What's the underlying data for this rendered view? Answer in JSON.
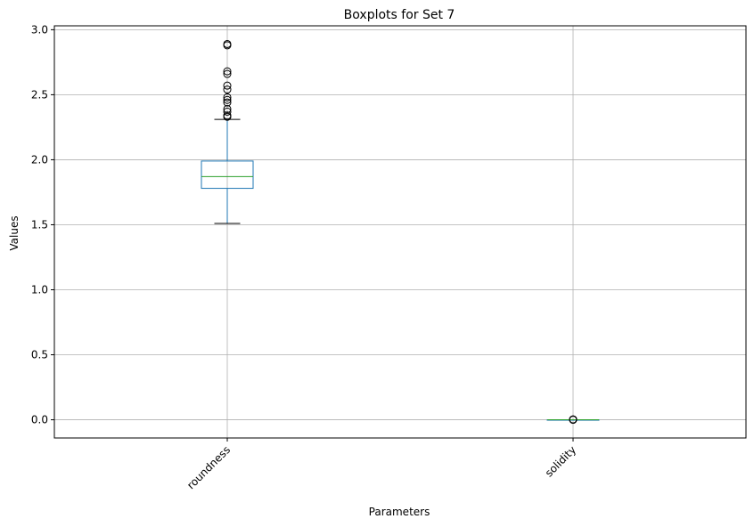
{
  "chart_data": {
    "type": "box",
    "title": "Boxplots for Set 7",
    "xlabel": "Parameters",
    "ylabel": "Values",
    "ylim": [
      -0.14,
      3.03
    ],
    "yticks": [
      0.0,
      0.5,
      1.0,
      1.5,
      2.0,
      2.5,
      3.0
    ],
    "ytick_labels": [
      "0.0",
      "0.5",
      "1.0",
      "1.5",
      "2.0",
      "2.5",
      "3.0"
    ],
    "grid": true,
    "xtick_rotation": 45,
    "categories": [
      "roundness",
      "solidity"
    ],
    "boxes": [
      {
        "name": "roundness",
        "whisker_low": 1.51,
        "q1": 1.78,
        "median": 1.87,
        "q3": 1.99,
        "whisker_high": 2.31,
        "outliers": [
          2.33,
          2.34,
          2.37,
          2.39,
          2.44,
          2.46,
          2.48,
          2.54,
          2.57,
          2.66,
          2.68,
          2.88,
          2.89
        ]
      },
      {
        "name": "solidity",
        "whisker_low": 0.0,
        "q1": 0.0,
        "median": 0.0,
        "q3": 0.0,
        "whisker_high": 0.0,
        "outliers": [
          0.0,
          0.001,
          0.002,
          0.003
        ]
      }
    ],
    "colors": {
      "box": "#1f77b4",
      "median": "#2ca02c",
      "whisker_cap": "#000000",
      "outlier": "#000000",
      "grid": "#b0b0b0"
    }
  }
}
